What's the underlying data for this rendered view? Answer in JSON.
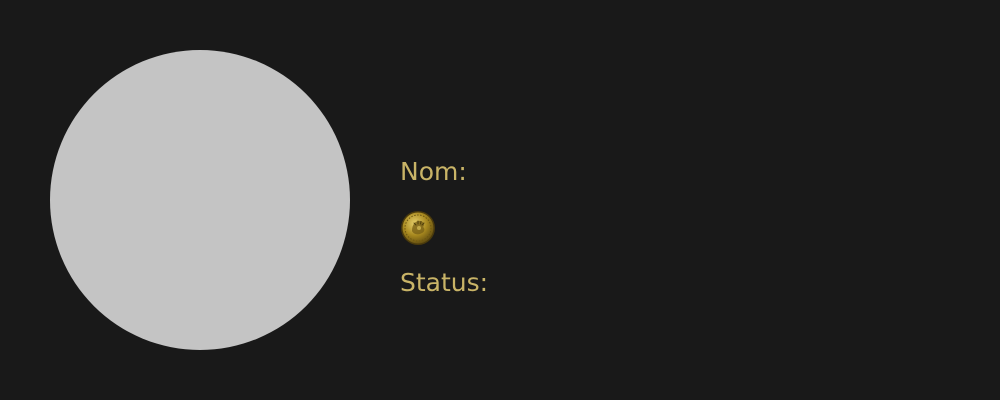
{
  "profile": {
    "name_label": "Nom:",
    "status_label": "Status:",
    "coin_icon": "gold-coin-icon"
  },
  "colors": {
    "background": "#191919",
    "avatar": "#c4c4c4",
    "label": "#c9b467",
    "coin": "#b89a2a"
  }
}
